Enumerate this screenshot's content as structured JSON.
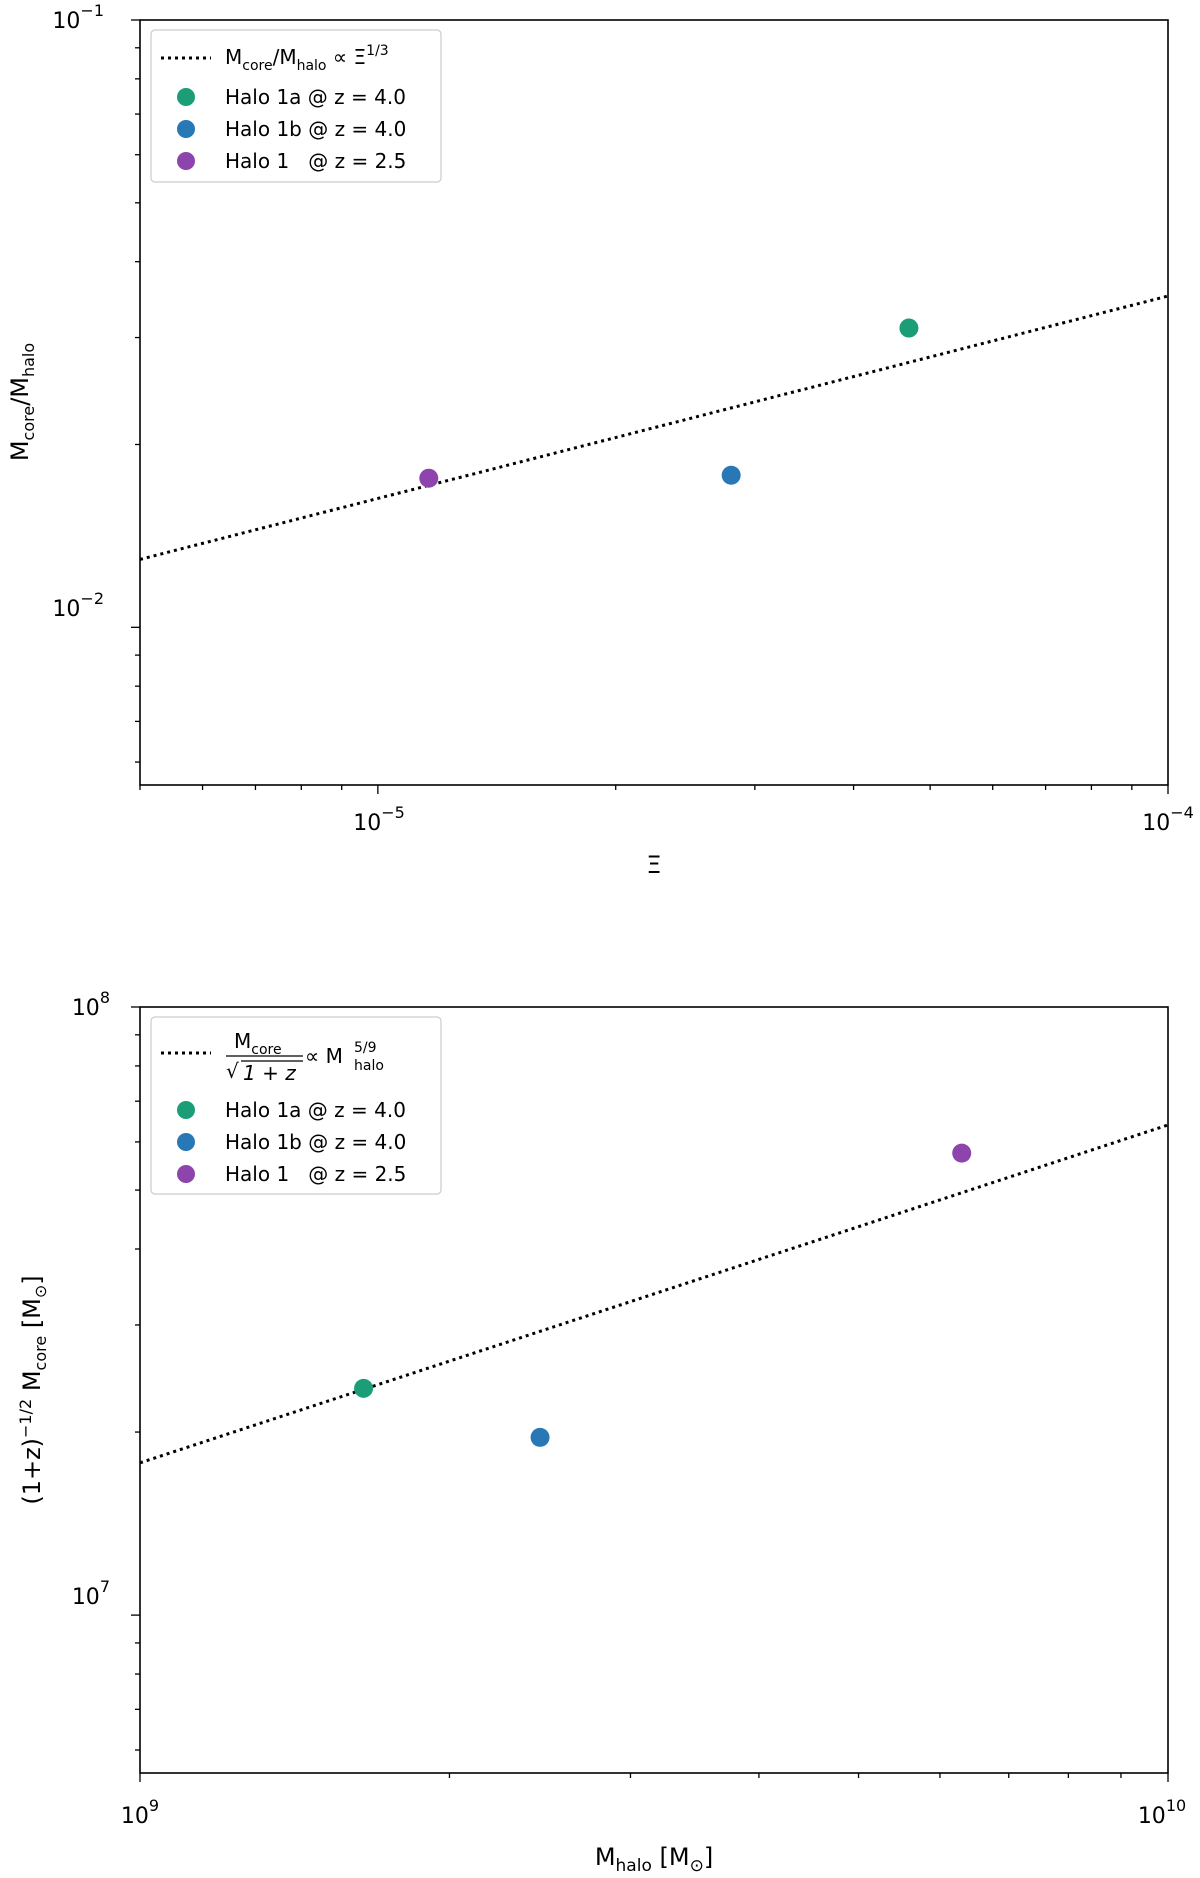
{
  "chart_data": [
    {
      "type": "scatter",
      "xscale": "log",
      "yscale": "log",
      "xlim": [
        5e-06,
        0.0001
      ],
      "ylim": [
        0.0055,
        0.1
      ],
      "xlabel": {
        "base": "Ξ"
      },
      "ylabel": {
        "part1": "M",
        "sub1": "core",
        "slash": "/M",
        "sub2": "halo"
      },
      "x_ticks": [
        {
          "value": 1e-05,
          "base": "10",
          "exp": "−5"
        },
        {
          "value": 0.0001,
          "base": "10",
          "exp": "−4"
        }
      ],
      "y_ticks": [
        {
          "value": 0.01,
          "base": "10",
          "exp": "−2"
        },
        {
          "value": 0.1,
          "base": "10",
          "exp": "−1"
        }
      ],
      "fit_line": {
        "label": {
          "a": "M",
          "a_sub": "core",
          "b": "/M",
          "b_sub": "halo",
          "c": " ∝ Ξ",
          "c_sup": "1/3"
        },
        "anchor": {
          "x": 1e-05,
          "y": 0.0163
        },
        "slope": 0.3333,
        "color": "#000000"
      },
      "series": [
        {
          "name": "Halo 1a @ z = 4.0",
          "x": 4.7e-05,
          "y": 0.0311,
          "color": "#1b9e77"
        },
        {
          "name": "Halo 1b @ z = 4.0",
          "x": 2.8e-05,
          "y": 0.0178,
          "color": "#2878b5"
        },
        {
          "name": "Halo 1   @ z = 2.5",
          "x": 1.16e-05,
          "y": 0.0176,
          "color": "#8e44ad"
        }
      ],
      "legend_position": "top-left"
    },
    {
      "type": "scatter",
      "xscale": "log",
      "yscale": "log",
      "xlim": [
        1000000000.0,
        10000000000.0
      ],
      "ylim": [
        5500000.0,
        100000000.0
      ],
      "xlabel": {
        "a": "M",
        "a_sub": "halo",
        "b": " [M",
        "b_sub": "⊙",
        "c": "]"
      },
      "ylabel": {
        "a": "(1+z)",
        "a_sup": "−1/2",
        "b": " M",
        "b_sub": "core",
        "c": " [M",
        "c_sub": "⊙",
        "d": "]"
      },
      "x_ticks": [
        {
          "value": 1000000000.0,
          "base": "10",
          "exp": "9"
        },
        {
          "value": 10000000000.0,
          "base": "10",
          "exp": "10"
        }
      ],
      "y_ticks": [
        {
          "value": 10000000.0,
          "base": "10",
          "exp": "7"
        },
        {
          "value": 100000000.0,
          "base": "10",
          "exp": "8"
        }
      ],
      "fit_line": {
        "label": {
          "num": "M",
          "num_sub": "core",
          "den": "1 + z",
          "prop": "∝ M",
          "sup": "5/9",
          "sub": "halo"
        },
        "anchor": {
          "x": 1000000000.0,
          "y": 17800000.0
        },
        "slope": 0.5556,
        "color": "#000000"
      },
      "series": [
        {
          "name": "Halo 1a @ z = 4.0",
          "x": 1650000000.0,
          "y": 23600000.0,
          "color": "#1b9e77"
        },
        {
          "name": "Halo 1b @ z = 4.0",
          "x": 2450000000.0,
          "y": 19600000.0,
          "color": "#2878b5"
        },
        {
          "name": "Halo 1   @ z = 2.5",
          "x": 6300000000.0,
          "y": 57500000.0,
          "color": "#8e44ad"
        }
      ],
      "legend_position": "top-left"
    }
  ]
}
